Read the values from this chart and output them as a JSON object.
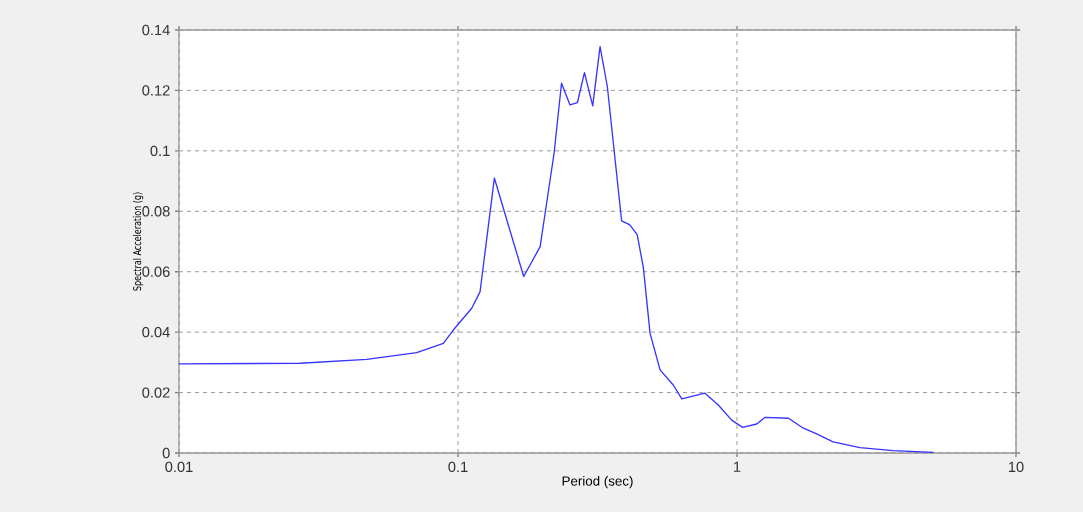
{
  "chart_data": {
    "type": "line",
    "xlabel": "Period (sec)",
    "ylabel": "Spectral Acceleration (g)",
    "log": "x",
    "grid": true,
    "marker": "none",
    "line_style": "solid",
    "xlim": [
      0.01,
      10
    ],
    "xticks": [
      0.01,
      0.1,
      1,
      10
    ],
    "ylim": [
      0,
      0.14
    ],
    "yticks": [
      0,
      0.02,
      0.04,
      0.06,
      0.08,
      0.1,
      0.12,
      0.14
    ],
    "x": [
      0.01,
      0.0272,
      0.0471,
      0.0711,
      0.0886,
      0.0962,
      0.112,
      0.12,
      0.135,
      0.172,
      0.197,
      0.221,
      0.235,
      0.252,
      0.268,
      0.284,
      0.304,
      0.323,
      0.343,
      0.386,
      0.413,
      0.439,
      0.462,
      0.488,
      0.53,
      0.591,
      0.634,
      0.768,
      0.857,
      0.957,
      1.048,
      1.177,
      1.26,
      1.53,
      1.73,
      1.93,
      2.21,
      2.76,
      3.63,
      5.06
    ],
    "series": [
      {
        "color": "#3535ff",
        "values": [
          0.0295,
          0.0297,
          0.031,
          0.0332,
          0.0363,
          0.0407,
          0.0479,
          0.0534,
          0.091,
          0.0584,
          0.0683,
          0.0992,
          0.1224,
          0.1152,
          0.116,
          0.1259,
          0.1149,
          0.1345,
          0.1213,
          0.0768,
          0.0755,
          0.0722,
          0.0612,
          0.0396,
          0.0275,
          0.0225,
          0.0179,
          0.0198,
          0.0159,
          0.0109,
          0.0085,
          0.0096,
          0.0118,
          0.0115,
          0.0082,
          0.0063,
          0.0037,
          0.0018,
          0.0008,
          0.0002
        ]
      }
    ]
  }
}
